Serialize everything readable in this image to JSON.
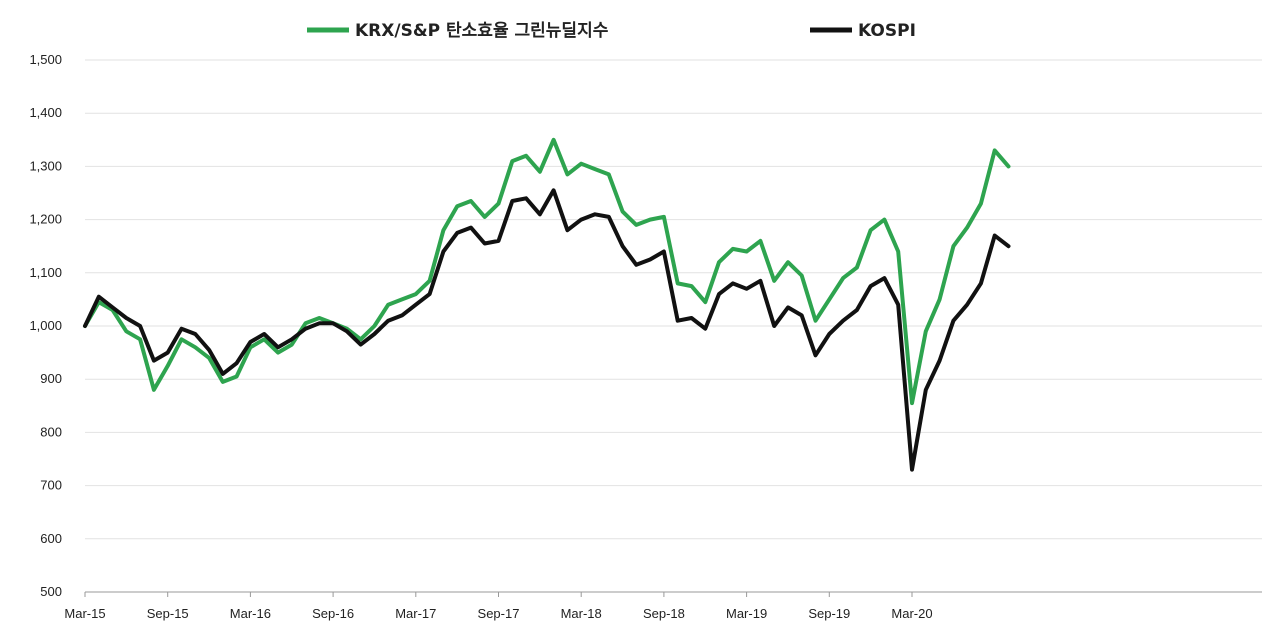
{
  "chart_data": {
    "type": "line",
    "title": "",
    "xlabel": "",
    "ylabel": "",
    "ylim": [
      500,
      1500
    ],
    "y_ticks": [
      "1,500",
      "1,400",
      "1,300",
      "1,200",
      "1,100",
      "1,000",
      "900",
      "800",
      "700",
      "600",
      "500"
    ],
    "x_ticks": [
      "Mar-15",
      "Sep-15",
      "Mar-16",
      "Sep-16",
      "Mar-17",
      "Sep-17",
      "Mar-18",
      "Sep-18",
      "Mar-19",
      "Sep-19",
      "Mar-20"
    ],
    "grid": "horizontal",
    "legend_position": "top",
    "series": [
      {
        "name": "KRX/S&P 탄소효율 그린뉴딜지수",
        "color": "#2ea44f",
        "points": [
          [
            "Mar-15",
            1000
          ],
          [
            "Apr-15",
            1045
          ],
          [
            "May-15",
            1030
          ],
          [
            "Jun-15",
            990
          ],
          [
            "Jul-15",
            975
          ],
          [
            "Aug-15",
            880
          ],
          [
            "Sep-15",
            925
          ],
          [
            "Oct-15",
            975
          ],
          [
            "Nov-15",
            960
          ],
          [
            "Dec-15",
            940
          ],
          [
            "Jan-16",
            895
          ],
          [
            "Feb-16",
            905
          ],
          [
            "Mar-16",
            960
          ],
          [
            "Apr-16",
            975
          ],
          [
            "May-16",
            950
          ],
          [
            "Jun-16",
            965
          ],
          [
            "Jul-16",
            1005
          ],
          [
            "Aug-16",
            1015
          ],
          [
            "Sep-16",
            1005
          ],
          [
            "Oct-16",
            995
          ],
          [
            "Nov-16",
            975
          ],
          [
            "Dec-16",
            1000
          ],
          [
            "Jan-17",
            1040
          ],
          [
            "Feb-17",
            1050
          ],
          [
            "Mar-17",
            1060
          ],
          [
            "Apr-17",
            1085
          ],
          [
            "May-17",
            1180
          ],
          [
            "Jun-17",
            1225
          ],
          [
            "Jul-17",
            1235
          ],
          [
            "Aug-17",
            1205
          ],
          [
            "Sep-17",
            1230
          ],
          [
            "Oct-17",
            1310
          ],
          [
            "Nov-17",
            1320
          ],
          [
            "Dec-17",
            1290
          ],
          [
            "Jan-18",
            1350
          ],
          [
            "Feb-18",
            1285
          ],
          [
            "Mar-18",
            1305
          ],
          [
            "Apr-18",
            1295
          ],
          [
            "May-18",
            1285
          ],
          [
            "Jun-18",
            1215
          ],
          [
            "Jul-18",
            1190
          ],
          [
            "Aug-18",
            1200
          ],
          [
            "Sep-18",
            1205
          ],
          [
            "Oct-18",
            1080
          ],
          [
            "Nov-18",
            1075
          ],
          [
            "Dec-18",
            1045
          ],
          [
            "Jan-19",
            1120
          ],
          [
            "Feb-19",
            1145
          ],
          [
            "Mar-19",
            1140
          ],
          [
            "Apr-19",
            1160
          ],
          [
            "May-19",
            1085
          ],
          [
            "Jun-19",
            1120
          ],
          [
            "Jul-19",
            1095
          ],
          [
            "Aug-19",
            1010
          ],
          [
            "Sep-19",
            1050
          ],
          [
            "Oct-19",
            1090
          ],
          [
            "Nov-19",
            1110
          ],
          [
            "Dec-19",
            1180
          ],
          [
            "Jan-20",
            1200
          ],
          [
            "Feb-20",
            1140
          ],
          [
            "Mar-20",
            855
          ],
          [
            "Apr-20",
            990
          ],
          [
            "May-20",
            1050
          ],
          [
            "Jun-20",
            1150
          ],
          [
            "Jul-20",
            1185
          ],
          [
            "Aug-20",
            1230
          ],
          [
            "Sep-20",
            1330
          ],
          [
            "Oct-20",
            1300
          ]
        ]
      },
      {
        "name": "KOSPI",
        "color": "#111111",
        "points": [
          [
            "Mar-15",
            1000
          ],
          [
            "Apr-15",
            1055
          ],
          [
            "May-15",
            1035
          ],
          [
            "Jun-15",
            1015
          ],
          [
            "Jul-15",
            1000
          ],
          [
            "Aug-15",
            935
          ],
          [
            "Sep-15",
            950
          ],
          [
            "Oct-15",
            995
          ],
          [
            "Nov-15",
            985
          ],
          [
            "Dec-15",
            955
          ],
          [
            "Jan-16",
            910
          ],
          [
            "Feb-16",
            930
          ],
          [
            "Mar-16",
            970
          ],
          [
            "Apr-16",
            985
          ],
          [
            "May-16",
            960
          ],
          [
            "Jun-16",
            975
          ],
          [
            "Jul-16",
            995
          ],
          [
            "Aug-16",
            1005
          ],
          [
            "Sep-16",
            1005
          ],
          [
            "Oct-16",
            990
          ],
          [
            "Nov-16",
            965
          ],
          [
            "Dec-16",
            985
          ],
          [
            "Jan-17",
            1010
          ],
          [
            "Feb-17",
            1020
          ],
          [
            "Mar-17",
            1040
          ],
          [
            "Apr-17",
            1060
          ],
          [
            "May-17",
            1140
          ],
          [
            "Jun-17",
            1175
          ],
          [
            "Jul-17",
            1185
          ],
          [
            "Aug-17",
            1155
          ],
          [
            "Sep-17",
            1160
          ],
          [
            "Oct-17",
            1235
          ],
          [
            "Nov-17",
            1240
          ],
          [
            "Dec-17",
            1210
          ],
          [
            "Jan-18",
            1255
          ],
          [
            "Feb-18",
            1180
          ],
          [
            "Mar-18",
            1200
          ],
          [
            "Apr-18",
            1210
          ],
          [
            "May-18",
            1205
          ],
          [
            "Jun-18",
            1150
          ],
          [
            "Jul-18",
            1115
          ],
          [
            "Aug-18",
            1125
          ],
          [
            "Sep-18",
            1140
          ],
          [
            "Oct-18",
            1010
          ],
          [
            "Nov-18",
            1015
          ],
          [
            "Dec-18",
            995
          ],
          [
            "Jan-19",
            1060
          ],
          [
            "Feb-19",
            1080
          ],
          [
            "Mar-19",
            1070
          ],
          [
            "Apr-19",
            1085
          ],
          [
            "May-19",
            1000
          ],
          [
            "Jun-19",
            1035
          ],
          [
            "Jul-19",
            1020
          ],
          [
            "Aug-19",
            945
          ],
          [
            "Sep-19",
            985
          ],
          [
            "Oct-19",
            1010
          ],
          [
            "Nov-19",
            1030
          ],
          [
            "Dec-19",
            1075
          ],
          [
            "Jan-20",
            1090
          ],
          [
            "Feb-20",
            1040
          ],
          [
            "Mar-20",
            730
          ],
          [
            "Apr-20",
            880
          ],
          [
            "May-20",
            935
          ],
          [
            "Jun-20",
            1010
          ],
          [
            "Jul-20",
            1040
          ],
          [
            "Aug-20",
            1080
          ],
          [
            "Sep-20",
            1170
          ],
          [
            "Oct-20",
            1150
          ]
        ]
      }
    ]
  }
}
